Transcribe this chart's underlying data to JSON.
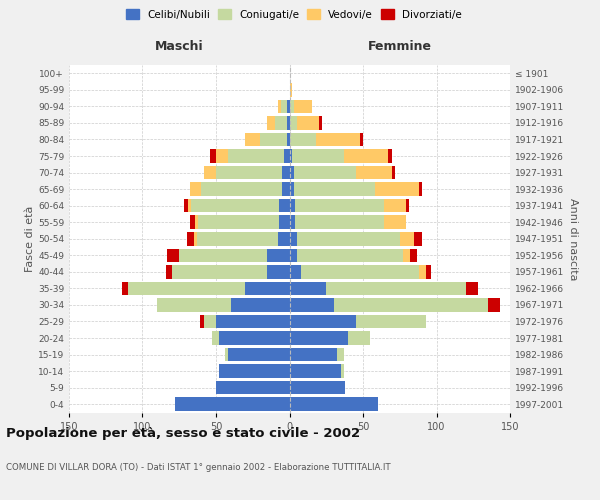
{
  "age_groups": [
    "0-4",
    "5-9",
    "10-14",
    "15-19",
    "20-24",
    "25-29",
    "30-34",
    "35-39",
    "40-44",
    "45-49",
    "50-54",
    "55-59",
    "60-64",
    "65-69",
    "70-74",
    "75-79",
    "80-84",
    "85-89",
    "90-94",
    "95-99",
    "100+"
  ],
  "birth_years": [
    "1997-2001",
    "1992-1996",
    "1987-1991",
    "1982-1986",
    "1977-1981",
    "1972-1976",
    "1967-1971",
    "1962-1966",
    "1957-1961",
    "1952-1956",
    "1947-1951",
    "1942-1946",
    "1937-1941",
    "1932-1936",
    "1927-1931",
    "1922-1926",
    "1917-1921",
    "1912-1916",
    "1907-1911",
    "1902-1906",
    "≤ 1901"
  ],
  "colors": {
    "celibi": "#4472c4",
    "coniugati": "#c5d9a0",
    "vedovi": "#ffc966",
    "divorziati": "#cc0000"
  },
  "maschi": {
    "celibi": [
      78,
      50,
      48,
      42,
      48,
      50,
      40,
      30,
      15,
      15,
      8,
      7,
      7,
      5,
      5,
      4,
      2,
      2,
      2,
      0,
      0
    ],
    "coniugati": [
      0,
      0,
      0,
      2,
      5,
      8,
      50,
      80,
      65,
      60,
      55,
      55,
      60,
      55,
      45,
      38,
      18,
      8,
      4,
      0,
      0
    ],
    "vedovi": [
      0,
      0,
      0,
      0,
      0,
      0,
      0,
      0,
      0,
      0,
      2,
      2,
      2,
      8,
      8,
      8,
      10,
      5,
      2,
      0,
      0
    ],
    "divorziati": [
      0,
      0,
      0,
      0,
      0,
      3,
      0,
      4,
      4,
      8,
      5,
      4,
      3,
      0,
      0,
      4,
      0,
      0,
      0,
      0,
      0
    ]
  },
  "femmine": {
    "celibi": [
      60,
      38,
      35,
      32,
      40,
      45,
      30,
      25,
      8,
      5,
      5,
      4,
      4,
      3,
      3,
      2,
      0,
      0,
      0,
      0,
      0
    ],
    "coniugati": [
      0,
      0,
      2,
      5,
      15,
      48,
      105,
      95,
      80,
      72,
      70,
      60,
      60,
      55,
      42,
      35,
      18,
      5,
      3,
      0,
      0
    ],
    "vedovi": [
      0,
      0,
      0,
      0,
      0,
      0,
      0,
      0,
      5,
      5,
      10,
      15,
      15,
      30,
      25,
      30,
      30,
      15,
      12,
      2,
      0
    ],
    "divorziati": [
      0,
      0,
      0,
      0,
      0,
      0,
      8,
      8,
      3,
      5,
      5,
      0,
      2,
      2,
      2,
      3,
      2,
      2,
      0,
      0,
      0
    ]
  },
  "xlim": 150,
  "title": "Popolazione per età, sesso e stato civile - 2002",
  "subtitle": "COMUNE DI VILLAR DORA (TO) - Dati ISTAT 1° gennaio 2002 - Elaborazione TUTTITALIA.IT",
  "ylabel_left": "Fasce di età",
  "ylabel_right": "Anni di nascita",
  "xlabel_left": "Maschi",
  "xlabel_right": "Femmine",
  "bg_color": "#f0f0f0",
  "plot_bg": "#ffffff"
}
